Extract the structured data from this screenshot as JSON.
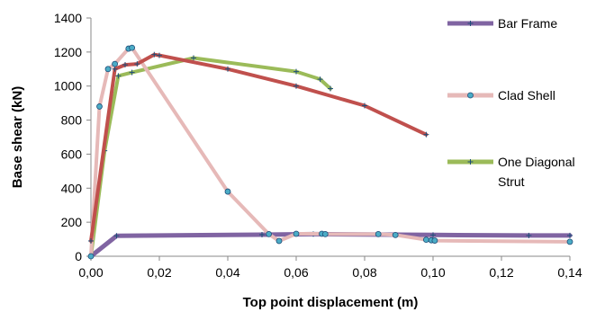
{
  "chart_data": {
    "type": "line",
    "title": "",
    "xlabel": "Top point displacement  (m)",
    "ylabel": "Base shear (kN)",
    "xlim": [
      0,
      0.14
    ],
    "ylim": [
      0,
      1400
    ],
    "x_ticks": [
      "0,00",
      "0,02",
      "0,04",
      "0,06",
      "0,08",
      "0,10",
      "0,12",
      "0,14"
    ],
    "y_ticks": [
      "0",
      "200",
      "400",
      "600",
      "800",
      "1000",
      "1200",
      "1400"
    ],
    "grid": false,
    "legend_position": "right",
    "series": [
      {
        "name": "Bar Frame",
        "color": "#8064a2",
        "marker": "plus",
        "x": [
          0,
          0.0075,
          0.05,
          0.065,
          0.1,
          0.128,
          0.14
        ],
        "y": [
          0,
          120,
          127,
          130,
          125,
          122,
          122
        ]
      },
      {
        "name": "Clad Shell",
        "color": "#e6b9b8",
        "marker": "dot",
        "x": [
          0,
          0.0025,
          0.005,
          0.007,
          0.011,
          0.012,
          0.04,
          0.052,
          0.055,
          0.06,
          0.0675,
          0.0685,
          0.084,
          0.089,
          0.098,
          0.0995,
          0.1005,
          0.14
        ],
        "y": [
          0,
          880,
          1100,
          1130,
          1220,
          1225,
          380,
          130,
          90,
          132,
          132,
          130,
          130,
          125,
          97,
          94,
          92,
          85
        ]
      },
      {
        "name": "One Diagonal Strut",
        "color": "#9bbb59",
        "marker": "plus",
        "x": [
          0,
          0.004,
          0.008,
          0.012,
          0.03,
          0.06,
          0.067,
          0.07
        ],
        "y": [
          0,
          620,
          1060,
          1080,
          1165,
          1085,
          1040,
          985
        ]
      },
      {
        "name": "",
        "color": "#c0504d",
        "marker": "plus",
        "x": [
          0,
          0.007,
          0.01,
          0.0135,
          0.0185,
          0.02,
          0.04,
          0.06,
          0.08,
          0.098
        ],
        "y": [
          90,
          1100,
          1125,
          1130,
          1185,
          1180,
          1100,
          1000,
          885,
          715
        ]
      }
    ]
  }
}
